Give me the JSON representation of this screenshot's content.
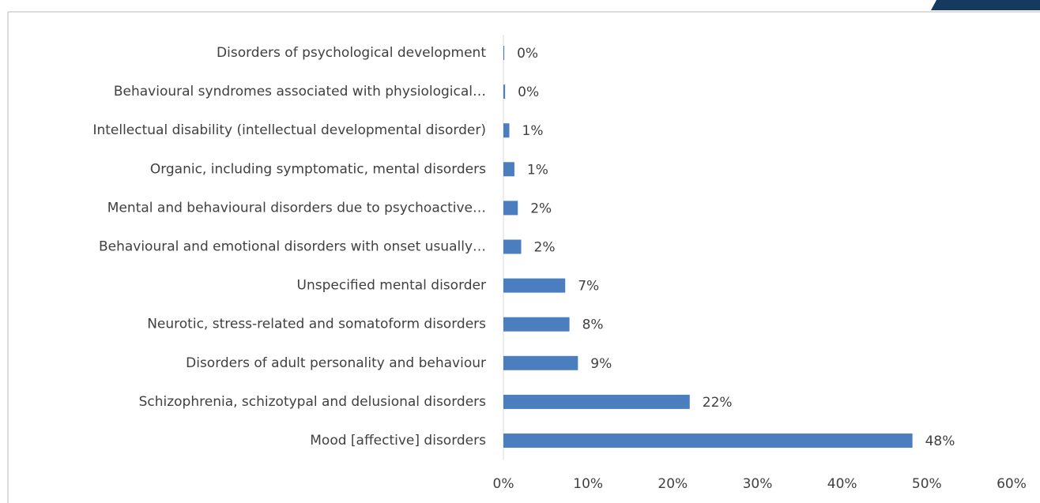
{
  "chart_data": {
    "type": "bar",
    "orientation": "horizontal",
    "categories": [
      "Mood [affective] disorders",
      "Schizophrenia, schizotypal and delusional disorders",
      "Disorders of adult personality and behaviour",
      "Neurotic, stress-related and somatoform disorders",
      "Unspecified mental disorder",
      "Behavioural and emotional disorders with onset usually…",
      "Mental and behavioural disorders due to psychoactive…",
      "Organic, including symptomatic, mental disorders",
      "Intellectual disability (intellectual developmental disorder)",
      "Behavioural syndromes associated with physiological…",
      "Disorders of psychological development"
    ],
    "values": [
      48.3,
      22.0,
      8.8,
      7.8,
      7.3,
      2.1,
      1.7,
      1.3,
      0.7,
      0.2,
      0.1
    ],
    "value_labels": [
      "48%",
      "22%",
      "9%",
      "8%",
      "7%",
      "2%",
      "2%",
      "1%",
      "1%",
      "0%",
      "0%"
    ],
    "color": "#4a7ebf",
    "xlim": [
      0,
      60
    ],
    "xticks": [
      {
        "value": 0,
        "label": "0%"
      },
      {
        "value": 10,
        "label": "10%"
      },
      {
        "value": 20,
        "label": "20%"
      },
      {
        "value": 30,
        "label": "30%"
      },
      {
        "value": 40,
        "label": "40%"
      },
      {
        "value": 50,
        "label": "50%"
      },
      {
        "value": 60,
        "label": "60%"
      }
    ],
    "grid": false
  }
}
